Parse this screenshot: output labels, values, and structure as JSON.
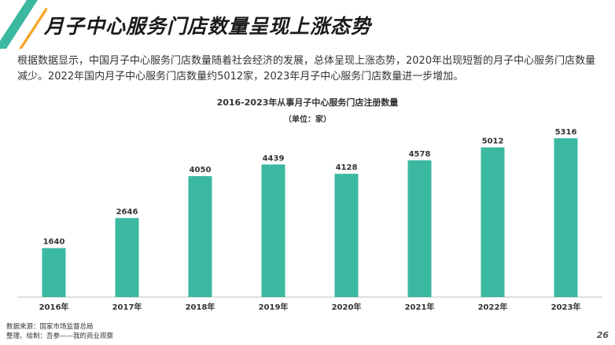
{
  "header": {
    "title": "月子中心服务门店数量呈现上涨态势",
    "accent_color": "#3bb8a0",
    "highlight_color": "#f5a623"
  },
  "intro_text": "根据数据显示，中国月子中心服务门店数量随着社会经济的发展，总体呈现上涨态势，2020年出现短暂的月子中心服务门店数量减少。2022年国内月子中心服务门店数量约5012家，2023年月子中心服务门店数量进一步增加。",
  "chart_data": {
    "type": "bar",
    "title": "2016-2023年从事月子中心服务门店注册数量",
    "unit_label": "（单位：家）",
    "categories": [
      "2016年",
      "2017年",
      "2018年",
      "2019年",
      "2020年",
      "2021年",
      "2022年",
      "2023年"
    ],
    "values": [
      1640,
      2646,
      4050,
      4439,
      4128,
      4578,
      5012,
      5316
    ],
    "ylim": [
      0,
      6000
    ],
    "bar_color": "#3bb8a0",
    "grid": false,
    "legend": "none"
  },
  "footer": {
    "source": "数据来源：国家市场监督总局",
    "credit": "整理、绘制：吾参——我的商业观察",
    "page_number": "26"
  }
}
